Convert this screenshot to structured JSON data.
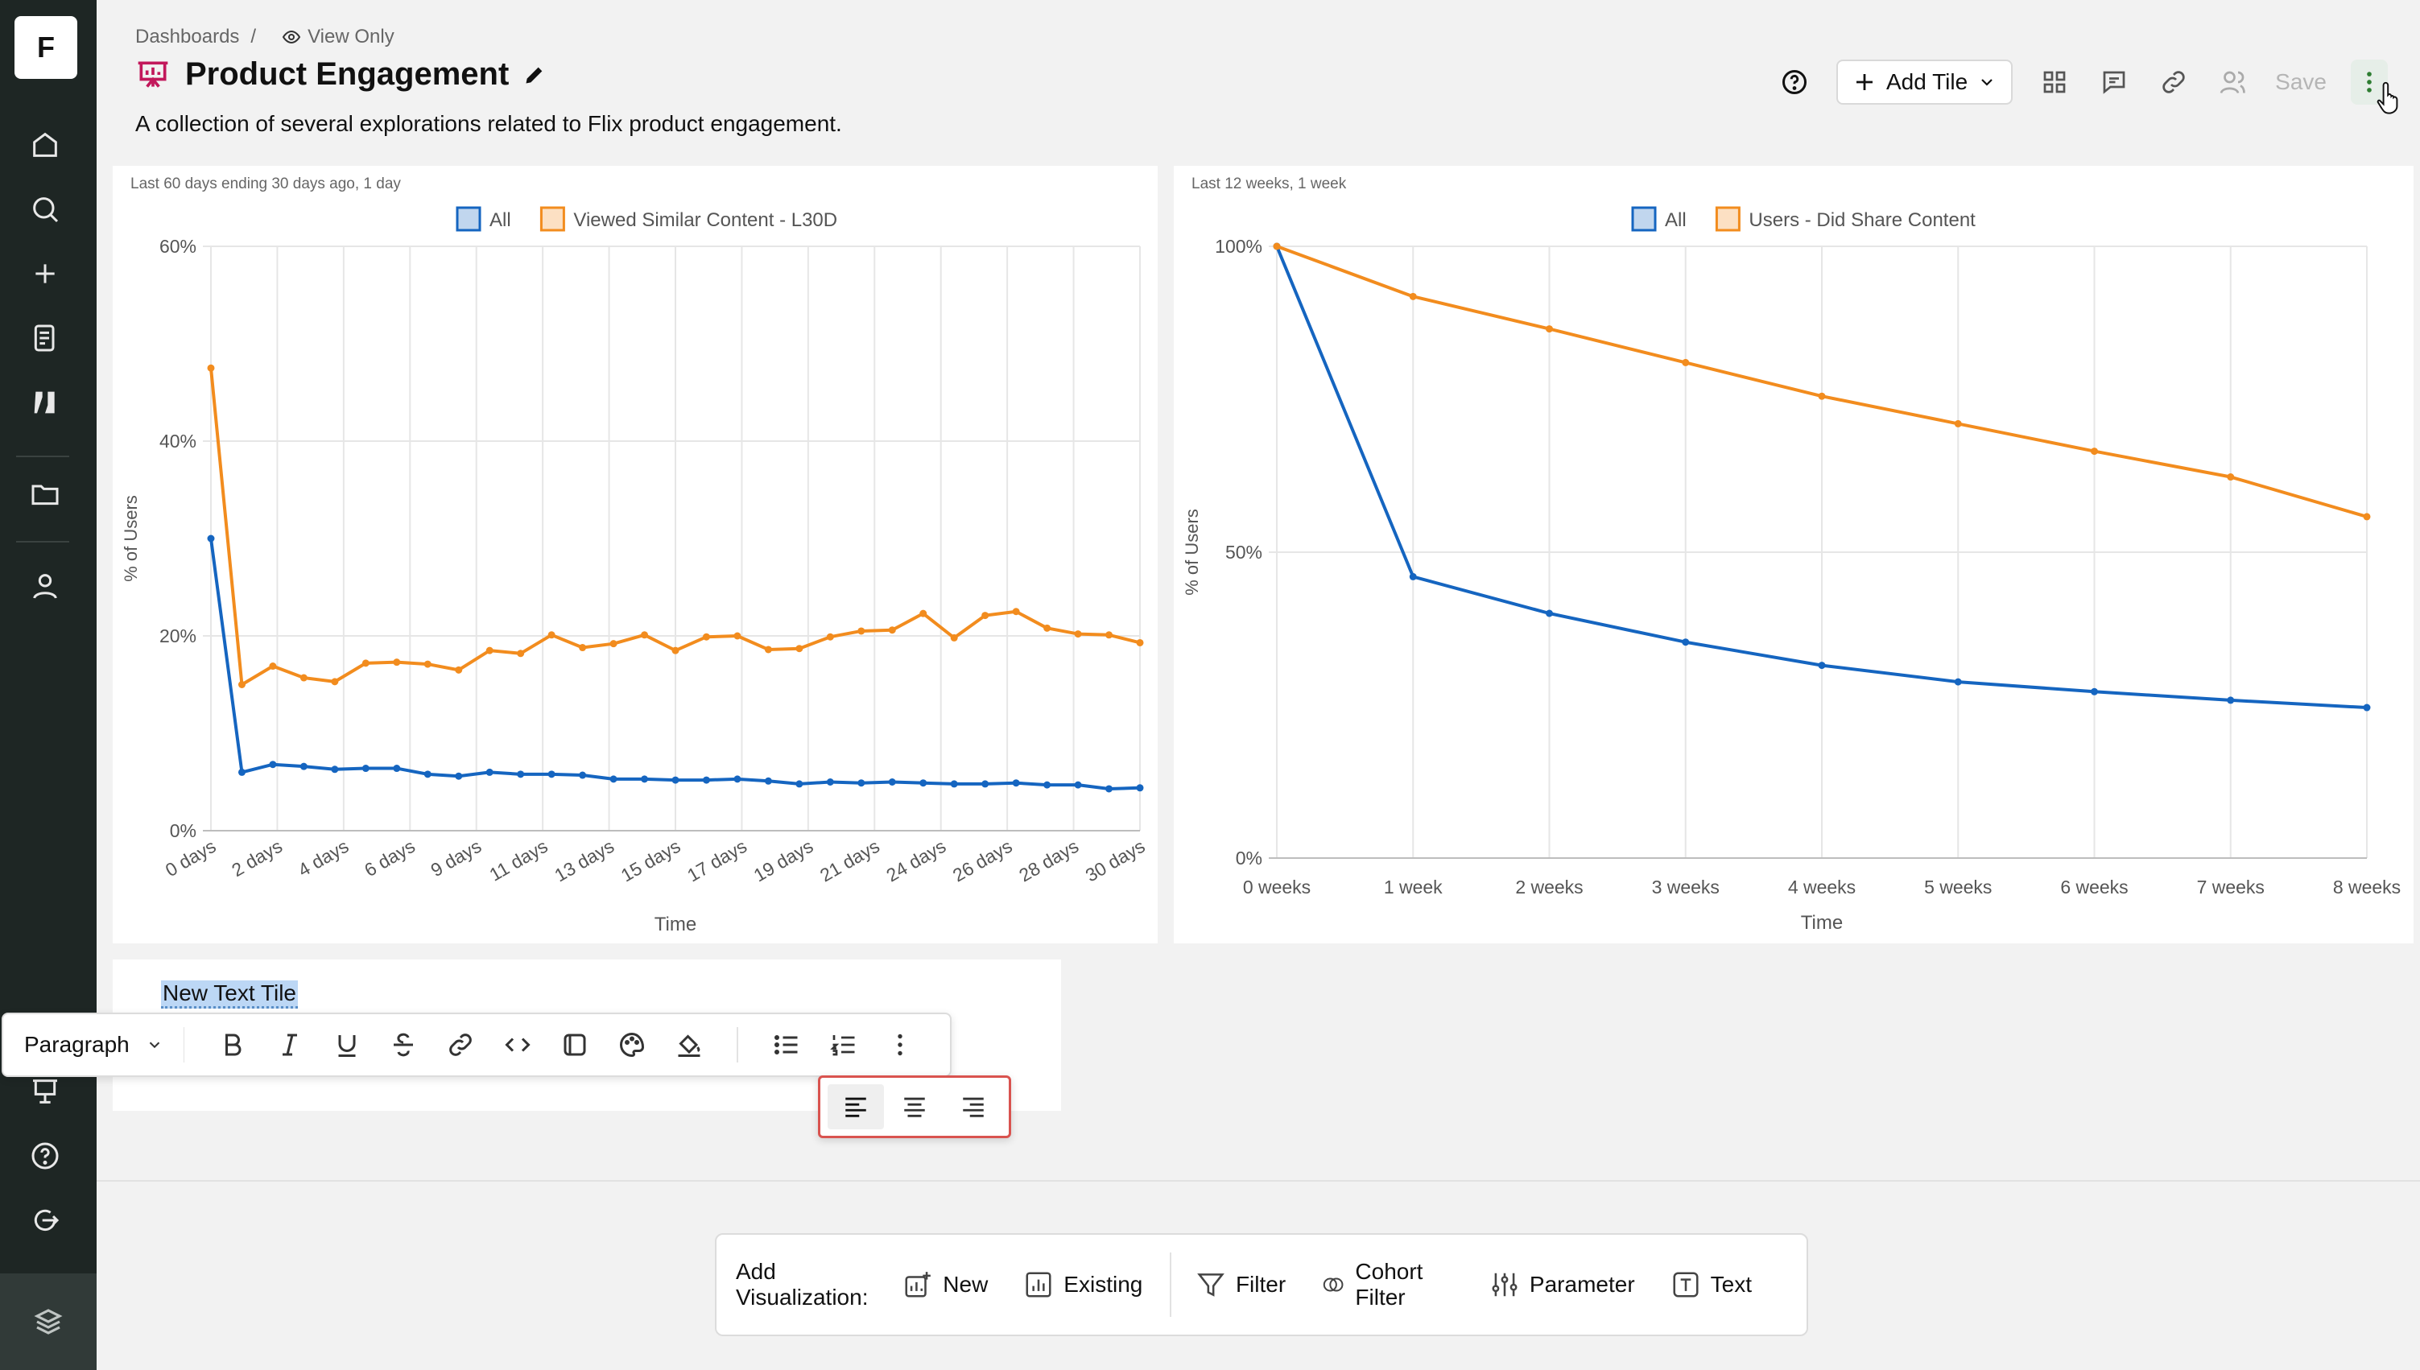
{
  "app": {
    "logo_letter": "F"
  },
  "breadcrumb": {
    "root": "Dashboards",
    "separator": "/",
    "mode": "View Only"
  },
  "dashboard": {
    "title": "Product Engagement",
    "description": "A collection of several explorations related to Flix product engagement."
  },
  "toolbar": {
    "add_tile": "Add Tile",
    "save": "Save"
  },
  "sidebar_icons": [
    "home-icon",
    "search-icon",
    "plus-icon",
    "notebook-icon",
    "lab-flask-icon",
    "folder-icon",
    "user-icon",
    "presentation-icon",
    "help-icon",
    "logout-icon"
  ],
  "charts": [
    {
      "meta": "Last 60 days ending 30 days ago, 1 day",
      "chart_data": {
        "type": "line",
        "ylabel": "% of Users",
        "xlabel": "Time",
        "ylim": [
          0,
          60
        ],
        "yticks": [
          "0%",
          "20%",
          "40%",
          "60%"
        ],
        "x": [
          0,
          1,
          2,
          3,
          4,
          5,
          6,
          7,
          8,
          9,
          10,
          11,
          12,
          13,
          14,
          15,
          16,
          17,
          18,
          19,
          20,
          21,
          22,
          23,
          24,
          25,
          26,
          27,
          28,
          29,
          30
        ],
        "xtick_labels": [
          "0 days",
          "2 days",
          "4 days",
          "6 days",
          "9 days",
          "11 days",
          "13 days",
          "15 days",
          "17 days",
          "19 days",
          "21 days",
          "24 days",
          "26 days",
          "28 days",
          "30 days"
        ],
        "grid": true,
        "legend": "top",
        "series": [
          {
            "name": "All",
            "color": "#1565c0",
            "values": [
              30,
              6,
              6.8,
              6.6,
              6.3,
              6.4,
              6.4,
              5.8,
              5.6,
              6,
              5.8,
              5.8,
              5.7,
              5.3,
              5.3,
              5.2,
              5.2,
              5.3,
              5.1,
              4.8,
              5,
              4.9,
              5,
              4.9,
              4.8,
              4.8,
              4.9,
              4.7,
              4.7,
              4.3,
              4.4
            ]
          },
          {
            "name": "Viewed Similar Content - L30D",
            "color": "#f28c1e",
            "values": [
              47.5,
              15,
              16.9,
              15.7,
              15.3,
              17.2,
              17.3,
              17.1,
              16.5,
              18.5,
              18.2,
              20.1,
              18.8,
              19.2,
              20.1,
              18.5,
              19.9,
              20,
              18.6,
              18.7,
              19.9,
              20.5,
              20.6,
              22.3,
              19.8,
              22.1,
              22.5,
              20.8,
              20.2,
              20.1,
              19.3
            ]
          }
        ]
      }
    },
    {
      "meta": "Last 12 weeks, 1 week",
      "chart_data": {
        "type": "line",
        "ylabel": "% of Users",
        "xlabel": "Time",
        "ylim": [
          0,
          100
        ],
        "yticks": [
          "0%",
          "50%",
          "100%"
        ],
        "x": [
          0,
          1,
          2,
          3,
          4,
          5,
          6,
          7,
          8
        ],
        "xtick_labels": [
          "0 weeks",
          "1 week",
          "2 weeks",
          "3 weeks",
          "4 weeks",
          "5 weeks",
          "6 weeks",
          "7 weeks",
          "8 weeks"
        ],
        "grid": true,
        "legend": "top",
        "series": [
          {
            "name": "All",
            "color": "#1565c0",
            "values": [
              100,
              46,
              40,
              35.3,
              31.5,
              28.8,
              27.2,
              25.8,
              24.6
            ]
          },
          {
            "name": "Users - Did Share Content",
            "color": "#f28c1e",
            "values": [
              100,
              91.8,
              86.5,
              81,
              75.5,
              71,
              66.5,
              62.3,
              55.8
            ]
          }
        ]
      }
    }
  ],
  "text_tile": {
    "title": "New Text Tile",
    "block_type": "Paragraph"
  },
  "add_visualization": {
    "label": "Add Visualization:",
    "new": "New",
    "existing": "Existing",
    "filter": "Filter",
    "cohort_filter": "Cohort Filter",
    "parameter": "Parameter",
    "text": "Text"
  }
}
